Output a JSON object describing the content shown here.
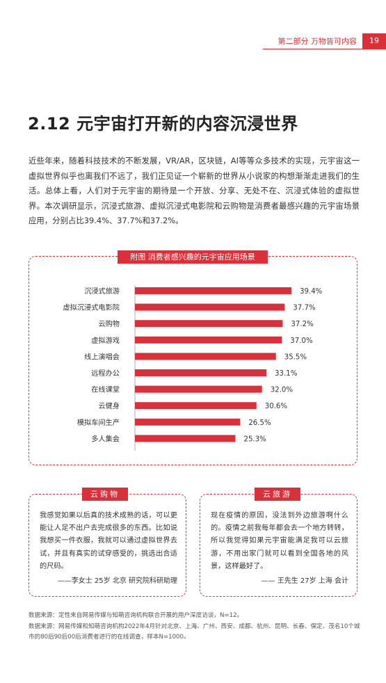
{
  "header": {
    "section": "第二部分  万物皆可内容",
    "page_number": "19"
  },
  "title": "2.12  元宇宙打开新的内容沉浸世界",
  "intro": "近些年来，随着科技技术的不断发展，VR/AR，区块链，AI等等众多技术的实现，元宇宙这一虚拟世界似乎也离我们不远了，我们正见证一个崭新的世界从小说家的构想渐渐走进我们的生活。总体上看，人们对于元宇宙的期待是一个开放、分享、无处不在、沉浸式体验的虚拟世界。本次调研显示，沉浸式旅游、虚拟沉浸式电影院和云购物是消费者最感兴趣的元宇宙场景应用，分别占比39.4%、37.7%和37.2%。",
  "chart_data": {
    "type": "bar",
    "orientation": "horizontal",
    "title": "附图 消费者感兴趣的元宇宙应用场景",
    "categories": [
      "沉浸式旅游",
      "虚拟沉浸式电影院",
      "云购物",
      "虚拟游戏",
      "线上演唱会",
      "远程办公",
      "在线课堂",
      "云健身",
      "模拟车间生产",
      "多人集会"
    ],
    "values": [
      39.4,
      37.7,
      37.2,
      37.0,
      35.5,
      33.1,
      32.0,
      30.6,
      26.5,
      25.3
    ],
    "value_labels": [
      "39.4%",
      "37.7%",
      "37.2%",
      "37.0%",
      "35.5%",
      "33.1%",
      "32.0%",
      "30.6%",
      "26.5%",
      "25.3%"
    ],
    "xlim": [
      0,
      39.4
    ],
    "bar_color": "#d9303a",
    "grid": false,
    "legend": "none"
  },
  "quotes": [
    {
      "tag": "云购物",
      "text": "我感觉如果以后真的技术成熟的话，可以更能让人足不出户去完成很多的东西。比如说我想买一件衣服，我就可以通过虚拟世界去试，并且有真实的试穿感受的，挑选出合适的尺码。",
      "attribution": "——李女士  25岁  北京  研究院科研助理"
    },
    {
      "tag": "云旅游",
      "text": "现在疫情的原因，没法到外边旅游啊什么的。疫情之前我每年都会去一个地方转转，所以我觉得如果元宇宙能满足我可以云旅游，不用出家门就可以看到全国各地的风景，这样最好了。",
      "attribution": "—— 王先生  27岁  上海  会计"
    }
  ],
  "sources": [
    "数据来源：定性来自网易传媒与知萌咨询机构联合开展的用户深度访谈，N=12。",
    "数据来源：网易传媒和知萌咨询机构2022年4月针对北京、上海、广州、西安、成都、杭州、昆明、长春、保定、茂名10个城市的80后90后00后消费者进行的在线调查，样本N=1000。"
  ],
  "colors": {
    "accent": "#d9303a"
  }
}
